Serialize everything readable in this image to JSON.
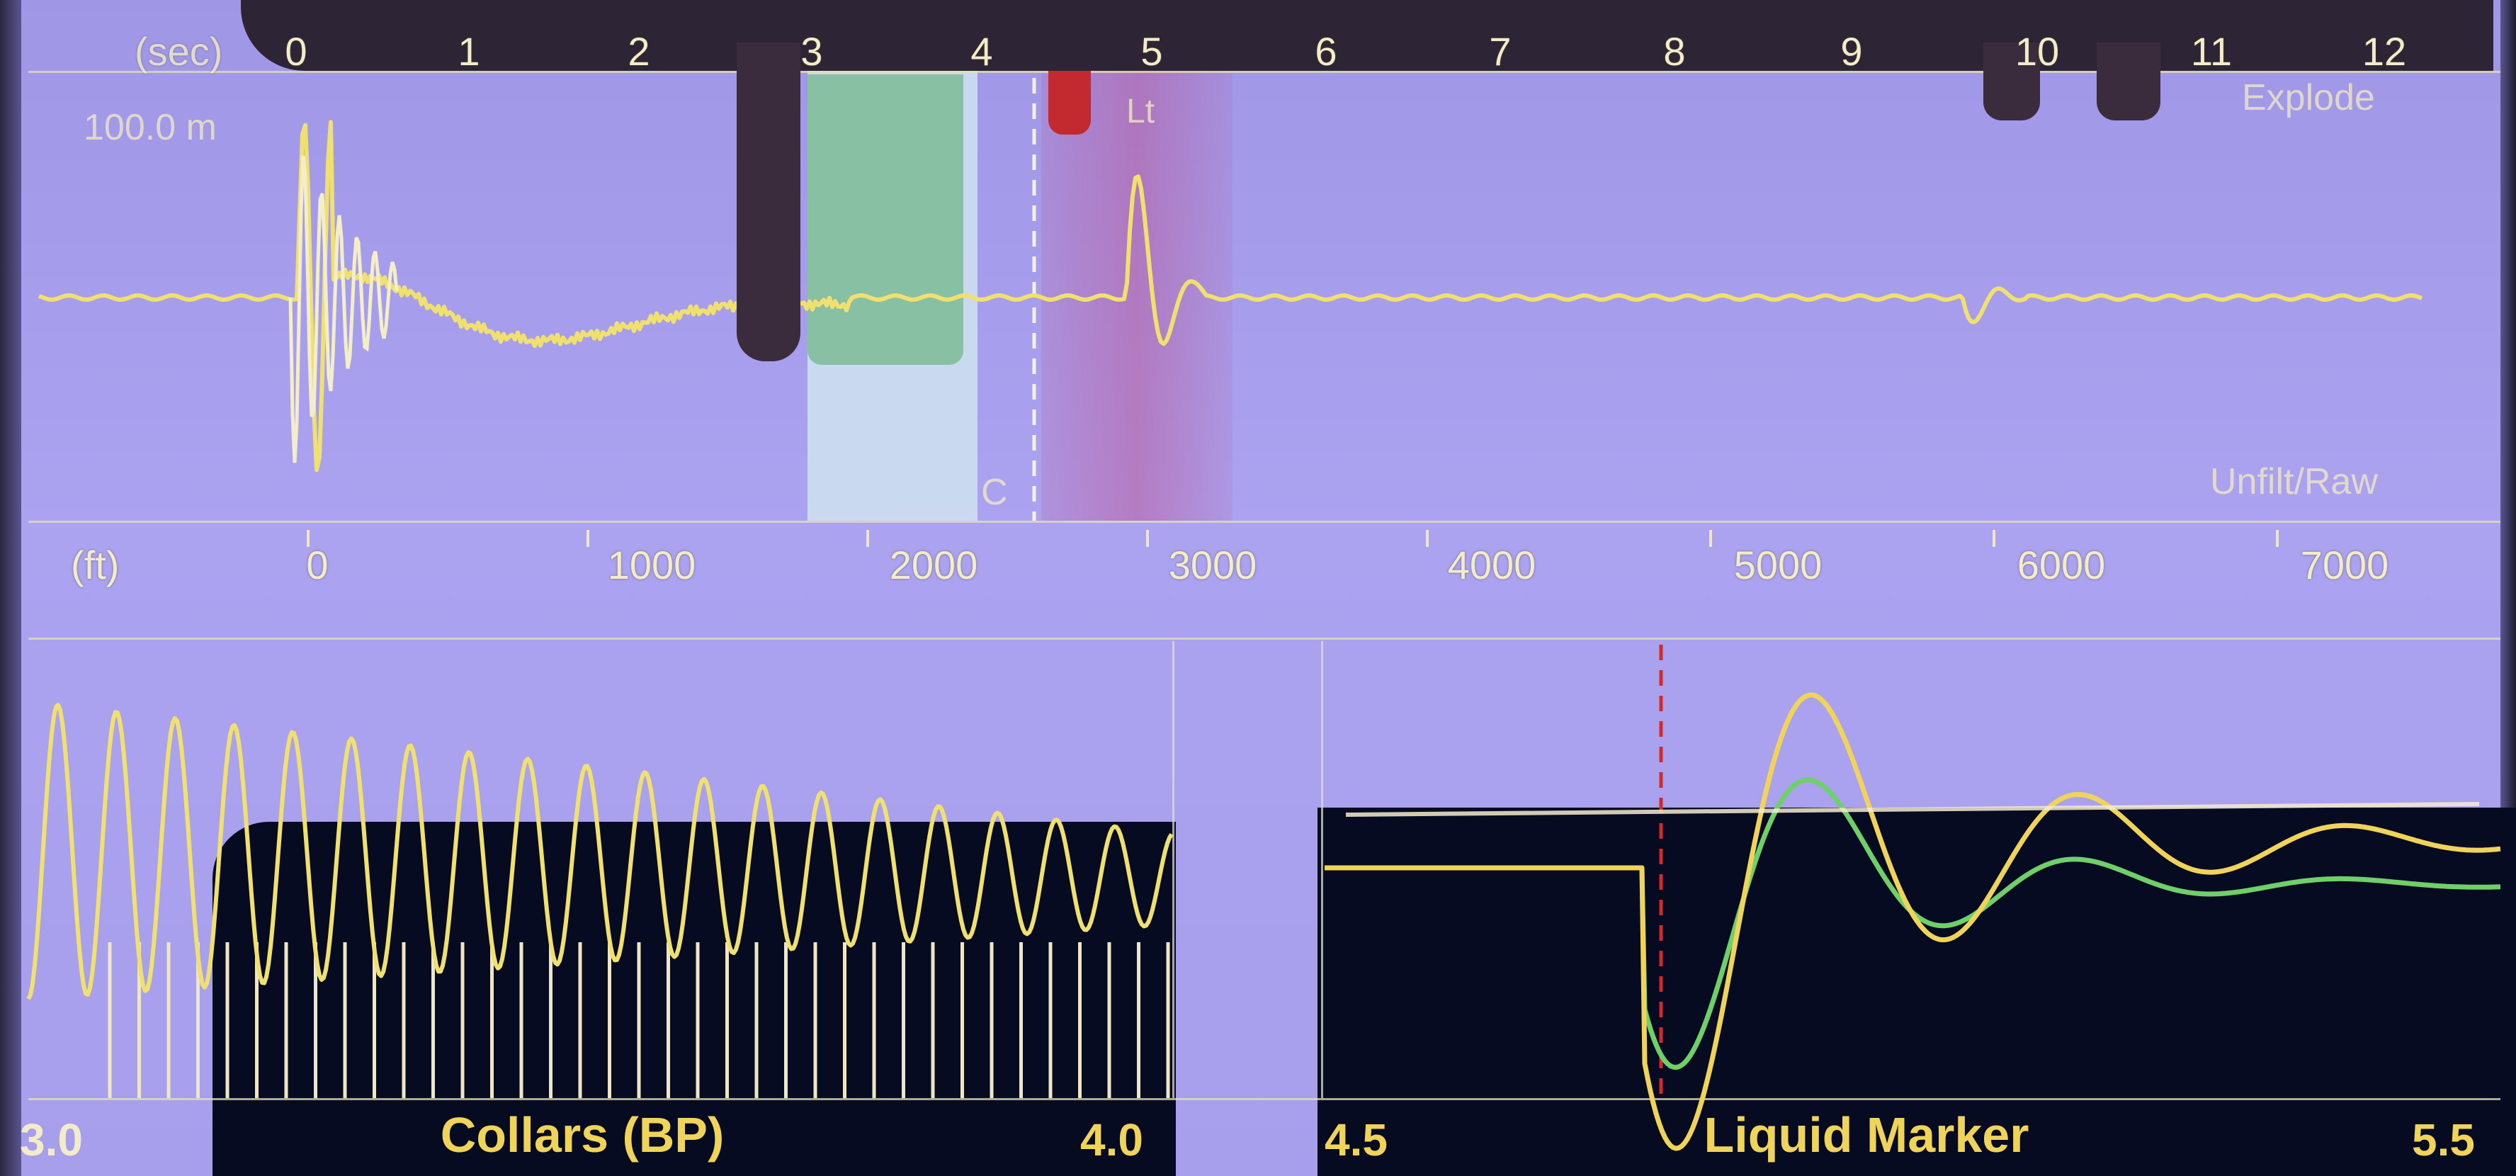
{
  "top_panel": {
    "time_axis_label": "(sec)",
    "time_ticks": [
      "0",
      "1",
      "2",
      "3",
      "4",
      "5",
      "6",
      "7",
      "8",
      "9",
      "10",
      "11",
      "12"
    ],
    "scale_text": "100.0 m",
    "mode_label": "Explode",
    "filter_label": "Unfilt/Raw",
    "marker_letter_left": "C",
    "marker_letter_right": "Lt"
  },
  "distance_axis": {
    "unit_label": "(ft)",
    "ticks": [
      "0",
      "1000",
      "2000",
      "3000",
      "4000",
      "5000",
      "6000",
      "7000"
    ]
  },
  "collars_panel": {
    "title": "Collars (BP)",
    "scale_min": "3.0",
    "scale_max": "4.0"
  },
  "liquid_panel": {
    "title": "Liquid Marker",
    "scale_min": "4.5",
    "scale_max": "5.5"
  },
  "colors": {
    "screen_background": "#a59ce8",
    "trace_yellow": "#f0e070",
    "trace_green": "#6fd06a",
    "marker_red": "#d02a2a",
    "highlight_green": "#8fc9a8",
    "dark_panel": "#060b22"
  }
}
